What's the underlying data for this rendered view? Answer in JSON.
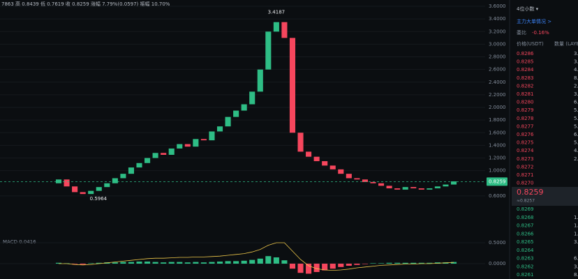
{
  "header": {
    "text": "7863 高 0.8439 低 0.7619 收 0.8259 涨幅 7.79%(0.0597) 振幅 10.70%"
  },
  "chart_data": [
    {
      "type": "candlestick",
      "open": [
        0.8,
        0.86,
        0.75,
        0.66,
        0.63,
        0.68,
        0.74,
        0.8,
        0.88,
        0.95,
        1.05,
        1.12,
        1.2,
        1.28,
        1.25,
        1.35,
        1.42,
        1.38,
        1.5,
        1.48,
        1.62,
        1.7,
        1.85,
        1.95,
        2.05,
        2.25,
        2.6,
        3.2,
        3.35,
        3.1,
        1.6,
        1.3,
        1.22,
        1.15,
        1.08,
        1.02,
        0.95,
        0.88,
        0.86,
        0.82,
        0.8,
        0.76,
        0.72,
        0.7,
        0.74,
        0.72,
        0.7,
        0.72,
        0.75,
        0.78
      ],
      "close": [
        0.86,
        0.75,
        0.66,
        0.63,
        0.68,
        0.74,
        0.8,
        0.88,
        0.95,
        1.05,
        1.12,
        1.2,
        1.28,
        1.25,
        1.35,
        1.42,
        1.38,
        1.5,
        1.48,
        1.62,
        1.7,
        1.85,
        1.95,
        2.05,
        2.25,
        2.6,
        3.2,
        3.35,
        3.1,
        1.6,
        1.3,
        1.22,
        1.15,
        1.08,
        1.02,
        0.95,
        0.88,
        0.86,
        0.82,
        0.8,
        0.76,
        0.72,
        0.7,
        0.74,
        0.72,
        0.7,
        0.72,
        0.75,
        0.78,
        0.83
      ],
      "up_color": "#2ebd85",
      "down_color": "#f6465d",
      "ylim": [
        0.4,
        3.7
      ],
      "yticks": [
        {
          "value": 3.6,
          "label": "3.6000"
        },
        {
          "value": 3.4,
          "label": "3.4000"
        },
        {
          "value": 3.2,
          "label": "3.2000"
        },
        {
          "value": 3.0,
          "label": "3.0000"
        },
        {
          "value": 2.8,
          "label": "2.8000"
        },
        {
          "value": 2.6,
          "label": "2.6000"
        },
        {
          "value": 2.4,
          "label": "2.4000"
        },
        {
          "value": 2.2,
          "label": "2.2000"
        },
        {
          "value": 2.0,
          "label": "2.0000"
        },
        {
          "value": 1.8,
          "label": "1.8000"
        },
        {
          "value": 1.6,
          "label": "1.6000"
        },
        {
          "value": 1.4,
          "label": "1.4000"
        },
        {
          "value": 1.2,
          "label": "1.2000"
        },
        {
          "value": 1.0,
          "label": "1.0000"
        },
        {
          "value": 0.6,
          "label": "0.6000"
        }
      ],
      "high_label": "3.4187",
      "low_label": "0.5964",
      "last_price": 0.8259
    },
    {
      "type": "macd",
      "title": "MACD 0.0416",
      "values": [
        0.02,
        0.01,
        -0.01,
        -0.02,
        0.01,
        0.02,
        0.03,
        0.03,
        0.04,
        0.04,
        0.05,
        0.05,
        0.04,
        0.03,
        0.04,
        0.04,
        0.03,
        0.04,
        0.03,
        0.04,
        0.05,
        0.06,
        0.06,
        0.07,
        0.09,
        0.12,
        0.18,
        0.15,
        0.08,
        -0.12,
        -0.22,
        -0.24,
        -0.2,
        -0.16,
        -0.12,
        -0.08,
        -0.05,
        -0.03,
        -0.01,
        0.01,
        0.01,
        0.02,
        0.02,
        0.02,
        0.02,
        0.02,
        0.02,
        0.03,
        0.03,
        0.04
      ],
      "line": [
        0.0,
        0.0,
        -0.02,
        -0.03,
        -0.02,
        0.0,
        0.02,
        0.04,
        0.06,
        0.08,
        0.1,
        0.12,
        0.13,
        0.13,
        0.14,
        0.15,
        0.15,
        0.16,
        0.16,
        0.17,
        0.18,
        0.2,
        0.22,
        0.24,
        0.28,
        0.34,
        0.44,
        0.5,
        0.5,
        0.3,
        0.1,
        -0.05,
        -0.12,
        -0.15,
        -0.16,
        -0.15,
        -0.13,
        -0.1,
        -0.08,
        -0.06,
        -0.04,
        -0.03,
        -0.02,
        -0.01,
        -0.01,
        0.0,
        0.0,
        0.01,
        0.02,
        0.03
      ],
      "line_color": "#f0c94a",
      "ylim": [
        -0.35,
        0.55
      ],
      "yticks": [
        {
          "value": 0.5,
          "label": "0.5000"
        },
        {
          "value": 0,
          "label": "0.0000"
        }
      ]
    }
  ],
  "order_book": {
    "precision": "4位小数 ▾",
    "big_orders": "主力大单情况 >",
    "ratio_label": "委比",
    "ratio": "-0.16%",
    "price_header": "价格(USDT)",
    "qty_header": "数量 (LAYER)",
    "asks": [
      {
        "price": "0.8286",
        "qty": "3."
      },
      {
        "price": "0.8285",
        "qty": "3."
      },
      {
        "price": "0.8284",
        "qty": "4."
      },
      {
        "price": "0.8283",
        "qty": "8."
      },
      {
        "price": "0.8282",
        "qty": "2."
      },
      {
        "price": "0.8281",
        "qty": "3."
      },
      {
        "price": "0.8280",
        "qty": "6."
      },
      {
        "price": "0.8279",
        "qty": "5."
      },
      {
        "price": "0.8278",
        "qty": "5."
      },
      {
        "price": "0.8277",
        "qty": "5."
      },
      {
        "price": "0.8276",
        "qty": "6."
      },
      {
        "price": "0.8275",
        "qty": "5."
      },
      {
        "price": "0.8274",
        "qty": "4."
      },
      {
        "price": "0.8273",
        "qty": "2."
      },
      {
        "price": "0.8272"
      },
      {
        "price": "0.8271"
      },
      {
        "price": "0.8270"
      }
    ],
    "last": "0.8259",
    "last_approx": "≈0.8257",
    "bids": [
      {
        "price": "0.8269"
      },
      {
        "price": "0.8268",
        "qty": "1."
      },
      {
        "price": "0.8267",
        "qty": "1."
      },
      {
        "price": "0.8266",
        "qty": "1."
      },
      {
        "price": "0.8265",
        "qty": "3."
      },
      {
        "price": "0.8264"
      },
      {
        "price": "0.8263",
        "qty": "6."
      },
      {
        "price": "0.8262",
        "qty": "3."
      },
      {
        "price": "0.8261",
        "qty": "8."
      }
    ]
  }
}
